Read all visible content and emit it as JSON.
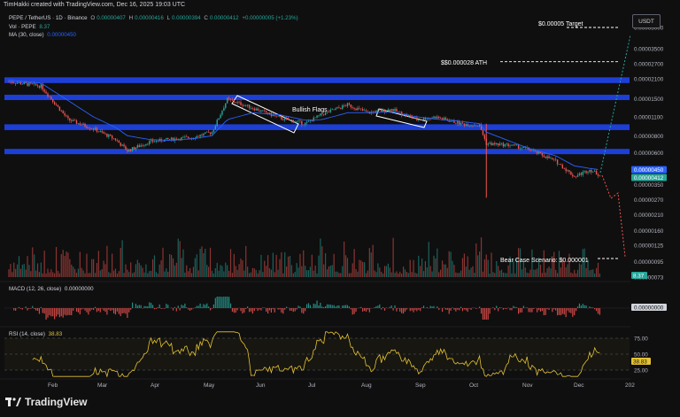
{
  "credit": "TimHakki created with TradingView.com, Dec 16, 2025 19:03 UTC",
  "header": {
    "symbol": "PEPE / TetherUS · 1D · Binance",
    "o_label": "O",
    "o": "0.00000407",
    "h_label": "H",
    "h": "0.00000416",
    "l_label": "L",
    "l": "0.00000394",
    "c_label": "C",
    "c": "0.00000412",
    "change": "+0.00000005 (+1.23%)",
    "vol_label": "Vol · PEPE",
    "vol": "8.37",
    "ma_label": "MA (30, close)",
    "ma": "0.00000450"
  },
  "currency_button": "USDT",
  "logo_text": "TradingView",
  "colors": {
    "background": "#0f0f0f",
    "up": "#26a69a",
    "down": "#ef5350",
    "zone": "#1d3fd6",
    "ma": "#2962ff",
    "rsi": "#e3c235",
    "target": "#ffffff"
  },
  "chart_data": [
    {
      "type": "line",
      "title": "PEPE / TetherUS · 1D · Binance",
      "x": [
        "2025-01-01",
        "2025-01-20",
        "2025-02-05",
        "2025-02-20",
        "2025-03-05",
        "2025-03-12",
        "2025-03-25",
        "2025-04-05",
        "2025-04-20",
        "2025-05-01",
        "2025-05-10",
        "2025-05-25",
        "2025-06-10",
        "2025-06-25",
        "2025-07-05",
        "2025-07-20",
        "2025-08-01",
        "2025-08-15",
        "2025-08-30",
        "2025-09-10",
        "2025-09-25",
        "2025-10-06",
        "2025-10-10",
        "2025-10-25",
        "2025-11-05",
        "2025-11-20",
        "2025-12-01",
        "2025-12-10",
        "2025-12-16"
      ],
      "price": [
        2e-05,
        1.85e-05,
        1.05e-05,
        9e-06,
        7.5e-06,
        6.2e-06,
        7.2e-06,
        7.5e-06,
        7.8e-06,
        8.5e-06,
        1.48e-05,
        1.28e-05,
        1.08e-05,
        9.8e-06,
        1.15e-05,
        1.35e-05,
        1.18e-05,
        1.25e-05,
        1.05e-05,
        1.1e-05,
        9.8e-06,
        9.5e-06,
        7e-06,
        6.8e-06,
        6.3e-06,
        5.2e-06,
        4e-06,
        4.5e-06,
        4.12e-06
      ],
      "ma30": [
        2.05e-05,
        1.95e-05,
        1.45e-05,
        1.1e-05,
        9.2e-06,
        8e-06,
        7.5e-06,
        7.4e-06,
        7.6e-06,
        8e-06,
        1.05e-05,
        1.18e-05,
        1.14e-05,
        1.04e-05,
        1.05e-05,
        1.18e-05,
        1.18e-05,
        1.2e-05,
        1.1e-05,
        1.06e-05,
        1.02e-05,
        9.8e-06,
        8.5e-06,
        7.2e-06,
        6.4e-06,
        5.7e-06,
        4.8e-06,
        4.6e-06,
        4.5e-06
      ],
      "price_scale": "log",
      "y_ticks": [
        "0.00005000",
        "0.00003500",
        "0.00002700",
        "0.00002100",
        "0.00001500",
        "0.00001100",
        "0.00000800",
        "0.00000600",
        "0.00000450",
        "0.00000412",
        "0.00000350",
        "0.00000270",
        "0.00000210",
        "0.00000160",
        "0.00000125",
        "0.00000095",
        "0.00000073"
      ],
      "x_ticks": [
        "Feb",
        "Mar",
        "Apr",
        "May",
        "Jun",
        "Jul",
        "Aug",
        "Sep",
        "Oct",
        "Nov",
        "Dec",
        "202"
      ],
      "zones": [
        [
          1.95e-05,
          2.15e-05
        ],
        [
          1.48e-05,
          1.6e-05
        ],
        [
          8.8e-06,
          9.7e-06
        ],
        [
          5.9e-06,
          6.4e-06
        ]
      ],
      "annotations": [
        "$0.00005 Target",
        "$$0.000028 ATH",
        "Bullish Flags",
        "Bear Case Scenario: $0.000001"
      ],
      "target_levels": [
        5e-05,
        2.8e-05,
        1e-06
      ],
      "grid": false,
      "price_label": "0.00000412",
      "ma_label": "0.00000450"
    },
    {
      "type": "bar",
      "title": "Vol · PEPE",
      "value_label": "8.37"
    },
    {
      "type": "bar",
      "title": "MACD (12, 26, close)",
      "value": "0.00000000"
    },
    {
      "type": "line",
      "title": "RSI (14, close)",
      "value": "38.83",
      "y_ticks": [
        "75.00",
        "50.00",
        "25.00"
      ],
      "ylim": [
        0,
        100
      ]
    }
  ]
}
